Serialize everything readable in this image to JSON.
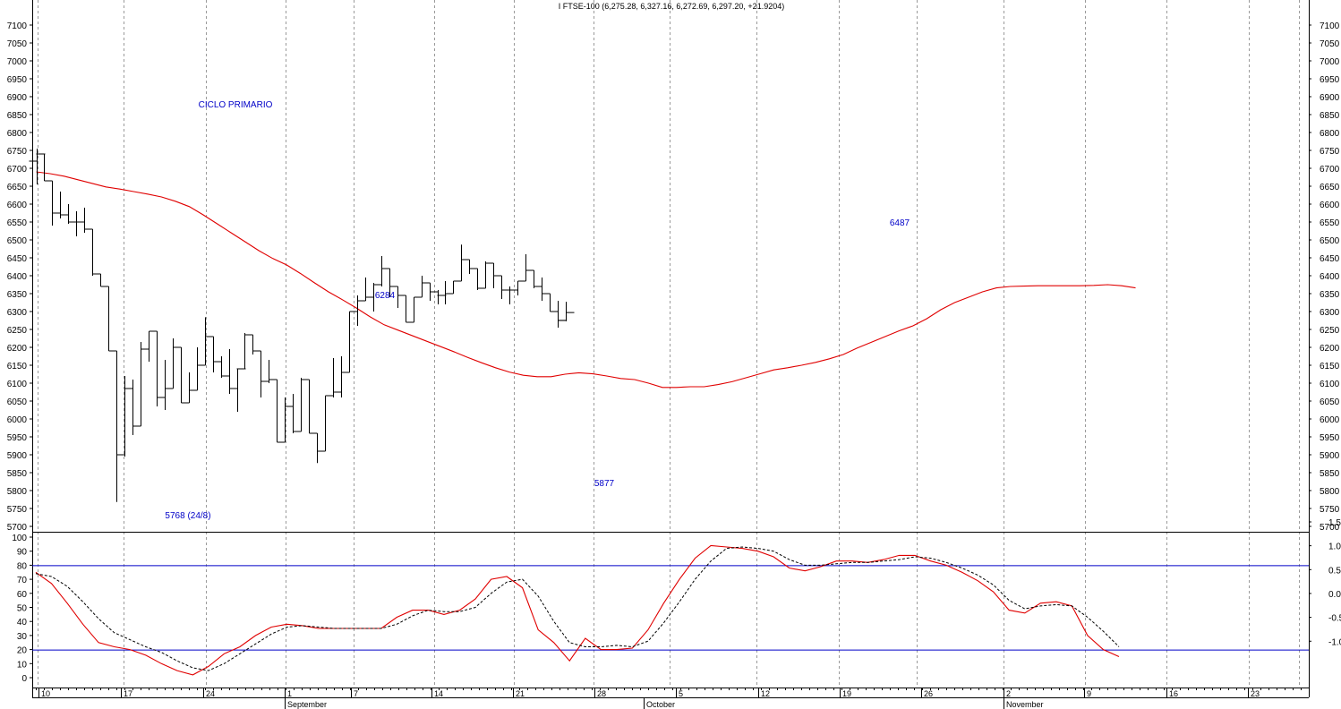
{
  "title": "I FTSE-100 (6,275.28, 6,327.16, 6,272.69, 6,297.20, +21.9204)",
  "colors": {
    "price": "#000000",
    "ma": "#e00000",
    "k": "#e00000",
    "d": "#000000",
    "level": "#0000c8",
    "label": "#0000c8",
    "grid": "#9a9a9a"
  },
  "chart_data": [
    {
      "type": "ohlc",
      "title": "I FTSE-100 (6,275.28, 6,327.16, 6,272.69, 6,297.20, +21.9204)",
      "ylim": [
        5700,
        7100
      ],
      "yticks": [
        5700,
        5750,
        5800,
        5850,
        5900,
        5950,
        6000,
        6050,
        6100,
        6150,
        6200,
        6250,
        6300,
        6350,
        6400,
        6450,
        6500,
        6550,
        6600,
        6650,
        6700,
        6750,
        6800,
        6850,
        6900,
        6950,
        7000,
        7050,
        7100
      ],
      "grid": "vertical dashed",
      "x_day_labels": [
        "10",
        "17",
        "24",
        "1",
        "7",
        "14",
        "21",
        "28",
        "5",
        "12",
        "19",
        "26",
        "2",
        "9",
        "16",
        "23"
      ],
      "x_month_labels": [
        "September",
        "October",
        "November"
      ],
      "bars": [
        {
          "o": 6720,
          "h": 6755,
          "l": 6655,
          "c": 6740
        },
        {
          "o": 6740,
          "h": 6740,
          "l": 6665,
          "c": 6665
        },
        {
          "o": 6665,
          "h": 6665,
          "l": 6540,
          "c": 6575
        },
        {
          "o": 6575,
          "h": 6635,
          "l": 6560,
          "c": 6570
        },
        {
          "o": 6570,
          "h": 6600,
          "l": 6545,
          "c": 6550
        },
        {
          "o": 6550,
          "h": 6580,
          "l": 6510,
          "c": 6550
        },
        {
          "o": 6550,
          "h": 6590,
          "l": 6520,
          "c": 6530
        },
        {
          "o": 6530,
          "h": 6530,
          "l": 6400,
          "c": 6405
        },
        {
          "o": 6405,
          "h": 6405,
          "l": 6370,
          "c": 6370
        },
        {
          "o": 6370,
          "h": 6370,
          "l": 6190,
          "c": 6190
        },
        {
          "o": 6190,
          "h": 6190,
          "l": 5768,
          "c": 5900
        },
        {
          "o": 5900,
          "h": 6120,
          "l": 5895,
          "c": 6085
        },
        {
          "o": 6085,
          "h": 6110,
          "l": 5955,
          "c": 5980
        },
        {
          "o": 5980,
          "h": 6215,
          "l": 5980,
          "c": 6195
        },
        {
          "o": 6195,
          "h": 6245,
          "l": 6160,
          "c": 6245
        },
        {
          "o": 6245,
          "h": 6245,
          "l": 6035,
          "c": 6060
        },
        {
          "o": 6060,
          "h": 6165,
          "l": 6025,
          "c": 6085
        },
        {
          "o": 6085,
          "h": 6225,
          "l": 6085,
          "c": 6200
        },
        {
          "o": 6200,
          "h": 6200,
          "l": 6045,
          "c": 6045
        },
        {
          "o": 6045,
          "h": 6130,
          "l": 6045,
          "c": 6080
        },
        {
          "o": 6080,
          "h": 6200,
          "l": 6080,
          "c": 6150
        },
        {
          "o": 6150,
          "h": 6284,
          "l": 6150,
          "c": 6230
        },
        {
          "o": 6230,
          "h": 6230,
          "l": 6130,
          "c": 6160
        },
        {
          "o": 6160,
          "h": 6175,
          "l": 6115,
          "c": 6120
        },
        {
          "o": 6120,
          "h": 6195,
          "l": 6070,
          "c": 6085
        },
        {
          "o": 6085,
          "h": 6140,
          "l": 6020,
          "c": 6140
        },
        {
          "o": 6140,
          "h": 6240,
          "l": 6140,
          "c": 6235
        },
        {
          "o": 6235,
          "h": 6235,
          "l": 6180,
          "c": 6190
        },
        {
          "o": 6190,
          "h": 6190,
          "l": 6060,
          "c": 6105
        },
        {
          "o": 6105,
          "h": 6165,
          "l": 6100,
          "c": 6110
        },
        {
          "o": 6110,
          "h": 6110,
          "l": 5935,
          "c": 5935
        },
        {
          "o": 5935,
          "h": 6060,
          "l": 5935,
          "c": 6035
        },
        {
          "o": 6035,
          "h": 6070,
          "l": 5960,
          "c": 5965
        },
        {
          "o": 5965,
          "h": 6115,
          "l": 5965,
          "c": 6110
        },
        {
          "o": 6110,
          "h": 6110,
          "l": 5960,
          "c": 5960
        },
        {
          "o": 5960,
          "h": 5960,
          "l": 5877,
          "c": 5910
        },
        {
          "o": 5910,
          "h": 6065,
          "l": 5910,
          "c": 6065
        },
        {
          "o": 6065,
          "h": 6170,
          "l": 6060,
          "c": 6075
        },
        {
          "o": 6075,
          "h": 6175,
          "l": 6060,
          "c": 6130
        },
        {
          "o": 6130,
          "h": 6300,
          "l": 6130,
          "c": 6300
        },
        {
          "o": 6300,
          "h": 6345,
          "l": 6260,
          "c": 6330
        },
        {
          "o": 6330,
          "h": 6395,
          "l": 6330,
          "c": 6340
        },
        {
          "o": 6340,
          "h": 6380,
          "l": 6300,
          "c": 6375
        },
        {
          "o": 6375,
          "h": 6455,
          "l": 6370,
          "c": 6420
        },
        {
          "o": 6420,
          "h": 6420,
          "l": 6340,
          "c": 6370
        },
        {
          "o": 6370,
          "h": 6370,
          "l": 6310,
          "c": 6345
        },
        {
          "o": 6345,
          "h": 6345,
          "l": 6270,
          "c": 6270
        },
        {
          "o": 6270,
          "h": 6340,
          "l": 6270,
          "c": 6340
        },
        {
          "o": 6340,
          "h": 6400,
          "l": 6340,
          "c": 6380
        },
        {
          "o": 6380,
          "h": 6380,
          "l": 6330,
          "c": 6355
        },
        {
          "o": 6355,
          "h": 6360,
          "l": 6320,
          "c": 6345
        },
        {
          "o": 6345,
          "h": 6385,
          "l": 6320,
          "c": 6350
        },
        {
          "o": 6350,
          "h": 6385,
          "l": 6350,
          "c": 6385
        },
        {
          "o": 6385,
          "h": 6487,
          "l": 6385,
          "c": 6445
        },
        {
          "o": 6445,
          "h": 6445,
          "l": 6405,
          "c": 6420
        },
        {
          "o": 6420,
          "h": 6420,
          "l": 6360,
          "c": 6365
        },
        {
          "o": 6365,
          "h": 6440,
          "l": 6365,
          "c": 6435
        },
        {
          "o": 6435,
          "h": 6435,
          "l": 6365,
          "c": 6400
        },
        {
          "o": 6400,
          "h": 6400,
          "l": 6335,
          "c": 6360
        },
        {
          "o": 6360,
          "h": 6370,
          "l": 6320,
          "c": 6360
        },
        {
          "o": 6360,
          "h": 6385,
          "l": 6345,
          "c": 6385
        },
        {
          "o": 6385,
          "h": 6460,
          "l": 6385,
          "c": 6415
        },
        {
          "o": 6415,
          "h": 6415,
          "l": 6365,
          "c": 6370
        },
        {
          "o": 6370,
          "h": 6395,
          "l": 6330,
          "c": 6350
        },
        {
          "o": 6350,
          "h": 6350,
          "l": 6300,
          "c": 6300
        },
        {
          "o": 6300,
          "h": 6330,
          "l": 6255,
          "c": 6275
        },
        {
          "o": 6275.28,
          "h": 6327.16,
          "l": 6272.69,
          "c": 6297.2
        }
      ],
      "moving_average": [
        6690,
        6685,
        6678,
        6668,
        6658,
        6648,
        6642,
        6635,
        6628,
        6620,
        6608,
        6593,
        6570,
        6545,
        6520,
        6495,
        6470,
        6448,
        6430,
        6406,
        6380,
        6355,
        6333,
        6310,
        6285,
        6263,
        6248,
        6233,
        6218,
        6203,
        6188,
        6172,
        6157,
        6143,
        6131,
        6122,
        6118,
        6118,
        6125,
        6129,
        6126,
        6120,
        6113,
        6110,
        6100,
        6088,
        6088,
        6090,
        6090,
        6096,
        6104,
        6115,
        6126,
        6137,
        6143,
        6150,
        6158,
        6168,
        6180,
        6198,
        6214,
        6230,
        6246,
        6260,
        6280,
        6305,
        6325,
        6340,
        6355,
        6366,
        6370,
        6371,
        6372,
        6372,
        6372,
        6372,
        6373,
        6375,
        6372,
        6366
      ],
      "annotations": [
        "CICLO PRIMARIO",
        "6284",
        "5768 (24/8)",
        "5877",
        "6487"
      ]
    },
    {
      "type": "line",
      "ylim": [
        -5,
        105
      ],
      "left_yticks": [
        0,
        10,
        20,
        30,
        40,
        50,
        60,
        70,
        80,
        90,
        100
      ],
      "right_yticks": [
        "1.5",
        "1.0",
        "0.5",
        "0.0",
        "-0.5",
        "-1.0"
      ],
      "levels": [
        20,
        80
      ],
      "series": [
        {
          "values": [
            75,
            67,
            53,
            38,
            25,
            22,
            20,
            16,
            10,
            5,
            2,
            8,
            17,
            22,
            30,
            36,
            38,
            37,
            35,
            35,
            35,
            35,
            35,
            43,
            48,
            48,
            45,
            48,
            56,
            70,
            72,
            64,
            34,
            25,
            12,
            28,
            20,
            20,
            21,
            34,
            53,
            70,
            85,
            94,
            93,
            92,
            90,
            86,
            78,
            76,
            79,
            83,
            83,
            82,
            84,
            87,
            87,
            83,
            80,
            75,
            69,
            61,
            48,
            46,
            53,
            54,
            51,
            30,
            20,
            15
          ]
        },
        {
          "values": [
            74,
            72,
            65,
            54,
            42,
            32,
            27,
            22,
            18,
            12,
            7,
            5,
            10,
            17,
            24,
            31,
            36,
            37,
            36,
            35,
            35,
            35,
            35,
            38,
            44,
            48,
            47,
            47,
            50,
            60,
            68,
            70,
            58,
            40,
            25,
            22,
            22,
            23,
            22,
            26,
            39,
            54,
            70,
            83,
            92,
            93,
            92,
            90,
            84,
            80,
            80,
            81,
            82,
            82,
            83,
            84,
            86,
            85,
            82,
            78,
            73,
            66,
            55,
            49,
            51,
            52,
            51,
            43,
            33,
            22
          ]
        }
      ]
    }
  ]
}
